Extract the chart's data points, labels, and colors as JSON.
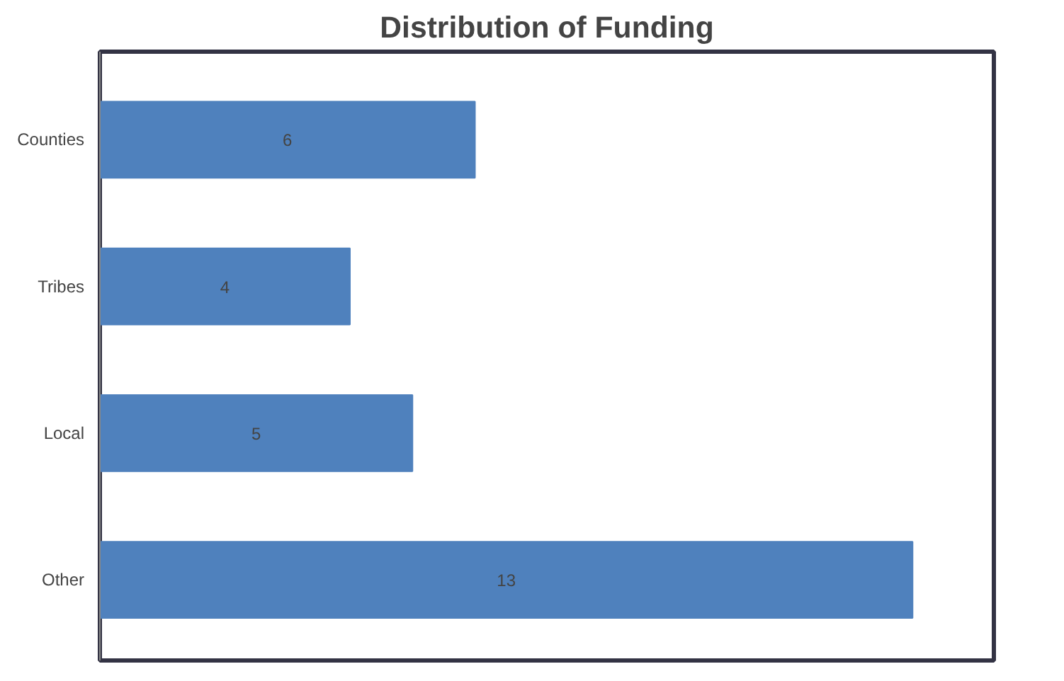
{
  "chart_data": {
    "type": "bar",
    "orientation": "horizontal",
    "title": "Distribution of Funding",
    "categories": [
      "Counties",
      "Tribes",
      "Local",
      "Other"
    ],
    "values": [
      6,
      4,
      5,
      13
    ],
    "color": "#4f81bd",
    "data_labels": true,
    "grid": false
  }
}
